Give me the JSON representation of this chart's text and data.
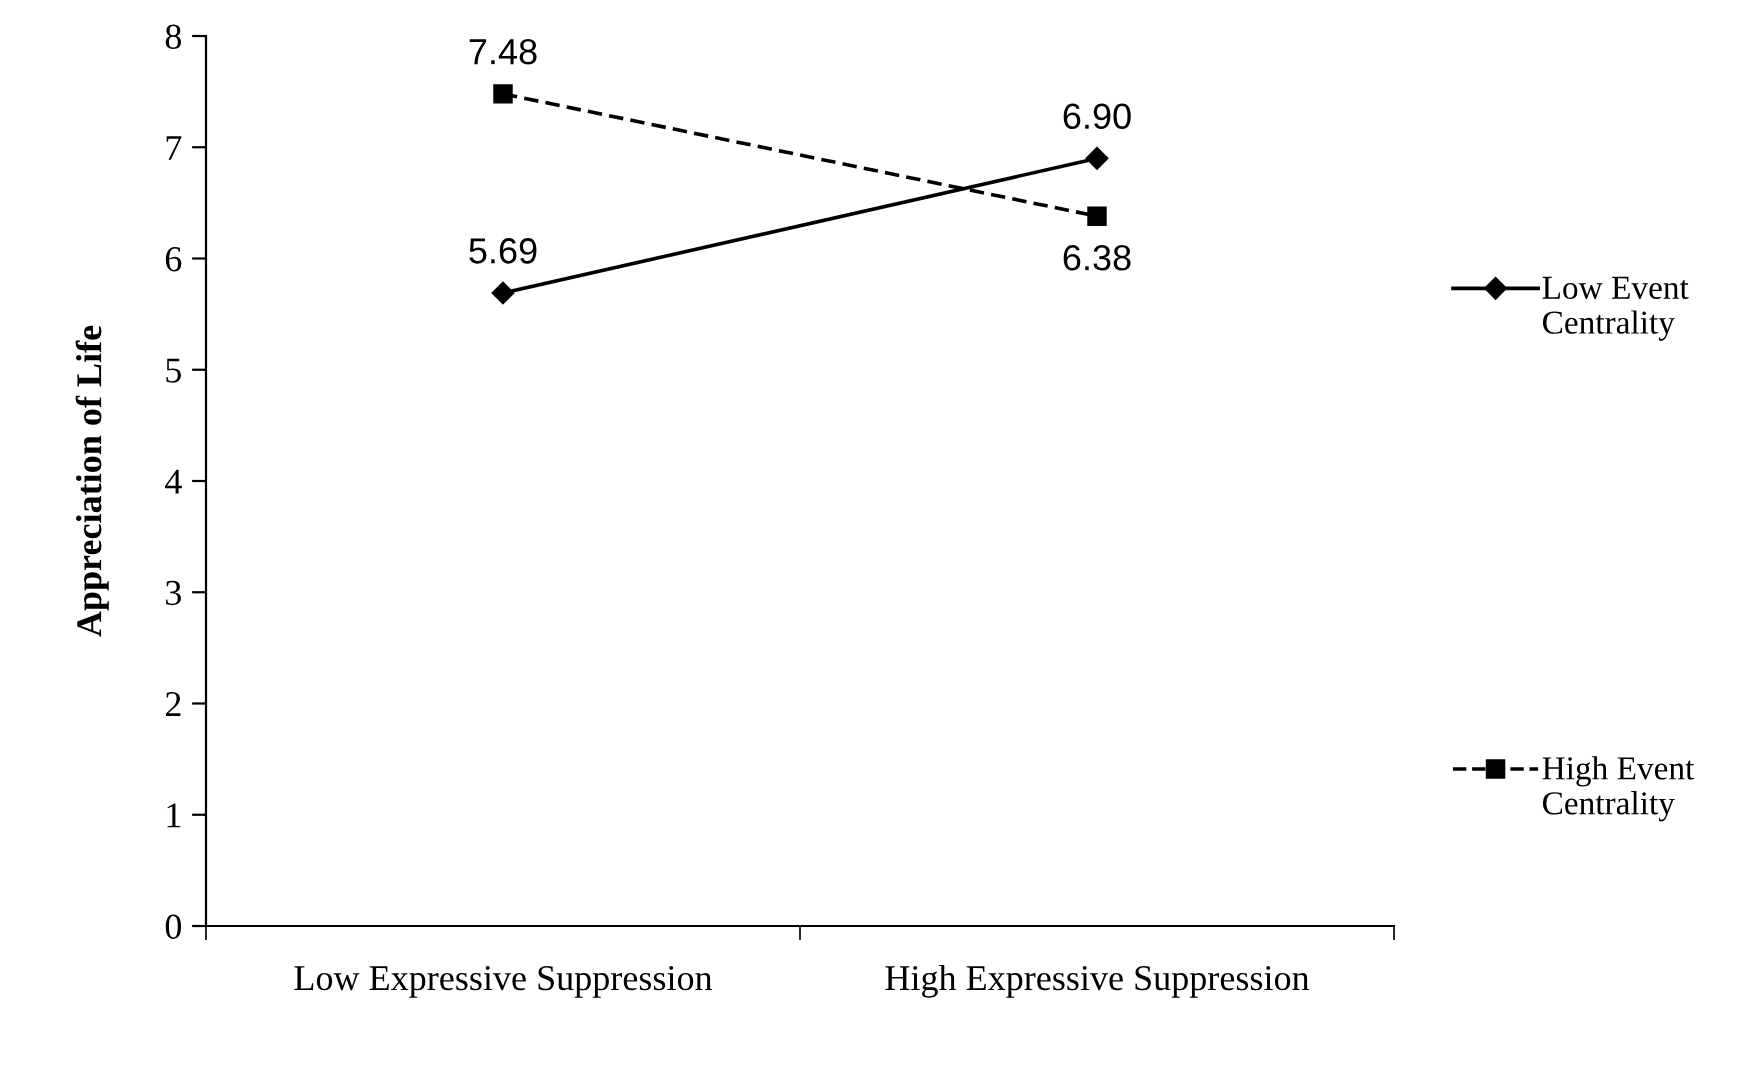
{
  "chart_data": {
    "type": "line",
    "ylabel": "Appreciation of Life",
    "categories": [
      "Low Expressive Suppression",
      "High Expressive Suppression"
    ],
    "series": [
      {
        "name": "Low Event Centrality",
        "color": "#000000",
        "values": [
          5.69,
          6.9
        ],
        "value_labels": [
          "5.69",
          "6.90"
        ],
        "marker": "diamond",
        "line_style": "solid"
      },
      {
        "name": "High Event Centrality",
        "color": "#000000",
        "values": [
          7.48,
          6.38
        ],
        "value_labels": [
          "7.48",
          "6.38"
        ],
        "marker": "square",
        "line_style": "dashed"
      }
    ],
    "ylim": [
      0,
      8
    ],
    "yticks": [
      0,
      1,
      2,
      3,
      4,
      5,
      6,
      7,
      8
    ],
    "grid": false,
    "legend": "right"
  }
}
